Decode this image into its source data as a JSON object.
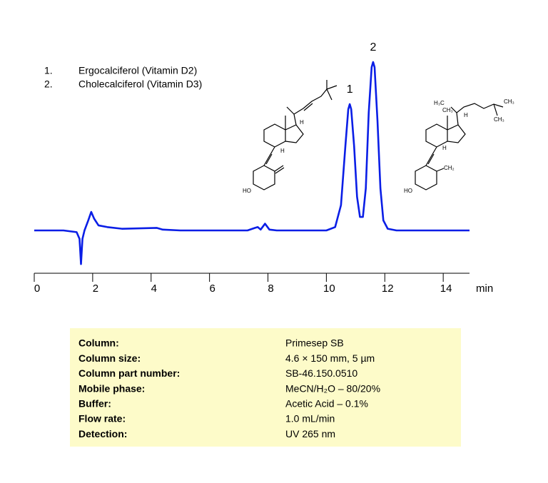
{
  "compounds": [
    {
      "number": "1.",
      "name": "Ergocalciferol (Vitamin D2)"
    },
    {
      "number": "2.",
      "name": "Cholecalciferol (Vitamin D3)"
    }
  ],
  "chart_data": {
    "type": "line",
    "x_label": "min",
    "x": [
      0,
      1.0,
      1.45,
      1.55,
      1.6,
      1.65,
      1.72,
      1.85,
      1.95,
      2.05,
      2.2,
      2.5,
      3.0,
      4.2,
      4.4,
      5.0,
      7.3,
      7.55,
      7.65,
      7.75,
      7.9,
      8.05,
      8.3,
      10.0,
      10.3,
      10.5,
      10.65,
      10.75,
      10.8,
      10.85,
      10.95,
      11.05,
      11.15,
      11.25,
      11.35,
      11.45,
      11.55,
      11.6,
      11.65,
      11.75,
      11.85,
      11.95,
      12.1,
      12.4,
      14.9
    ],
    "series": [
      {
        "color": "#0a1ee6",
        "values": [
          0,
          0,
          -1,
          -5,
          -20,
          -5,
          0,
          6,
          11,
          7,
          3,
          2,
          1,
          1.5,
          0.5,
          0,
          0,
          1.5,
          2,
          0.5,
          4,
          0.5,
          0,
          0,
          2,
          15,
          50,
          72,
          75,
          72,
          50,
          20,
          8,
          8,
          25,
          70,
          97,
          100,
          97,
          65,
          25,
          6,
          1,
          0,
          0
        ]
      }
    ],
    "xlim": [
      0,
      14.9
    ],
    "ylim": [
      -25,
      100
    ],
    "xticks": [
      0,
      2,
      4,
      6,
      8,
      10,
      12,
      14
    ],
    "annotations": [
      {
        "text": "1",
        "x": 10.8,
        "y": 75
      },
      {
        "text": "2",
        "x": 11.6,
        "y": 100
      }
    ]
  },
  "structures": [
    {
      "labels": [
        "HO",
        "H",
        "H"
      ]
    },
    {
      "labels": [
        "H₃C",
        "CH₃",
        "H",
        "CH₃",
        "CH₃",
        "H",
        "CH₂",
        "HO"
      ]
    }
  ],
  "conditions": {
    "rows": [
      [
        "Column:",
        "Primesep  SB"
      ],
      [
        "Column size:",
        "4.6 × 150 mm, 5 µm"
      ],
      [
        "Column part number:",
        "SB-46.150.0510"
      ],
      [
        "Mobile phase:",
        "MeCN/H₂O – 80/20%"
      ],
      [
        "Buffer:",
        "Acetic Acid – 0.1%"
      ],
      [
        "Flow rate:",
        "1.0 mL/min"
      ],
      [
        "Detection:",
        "UV 265 nm"
      ]
    ]
  }
}
